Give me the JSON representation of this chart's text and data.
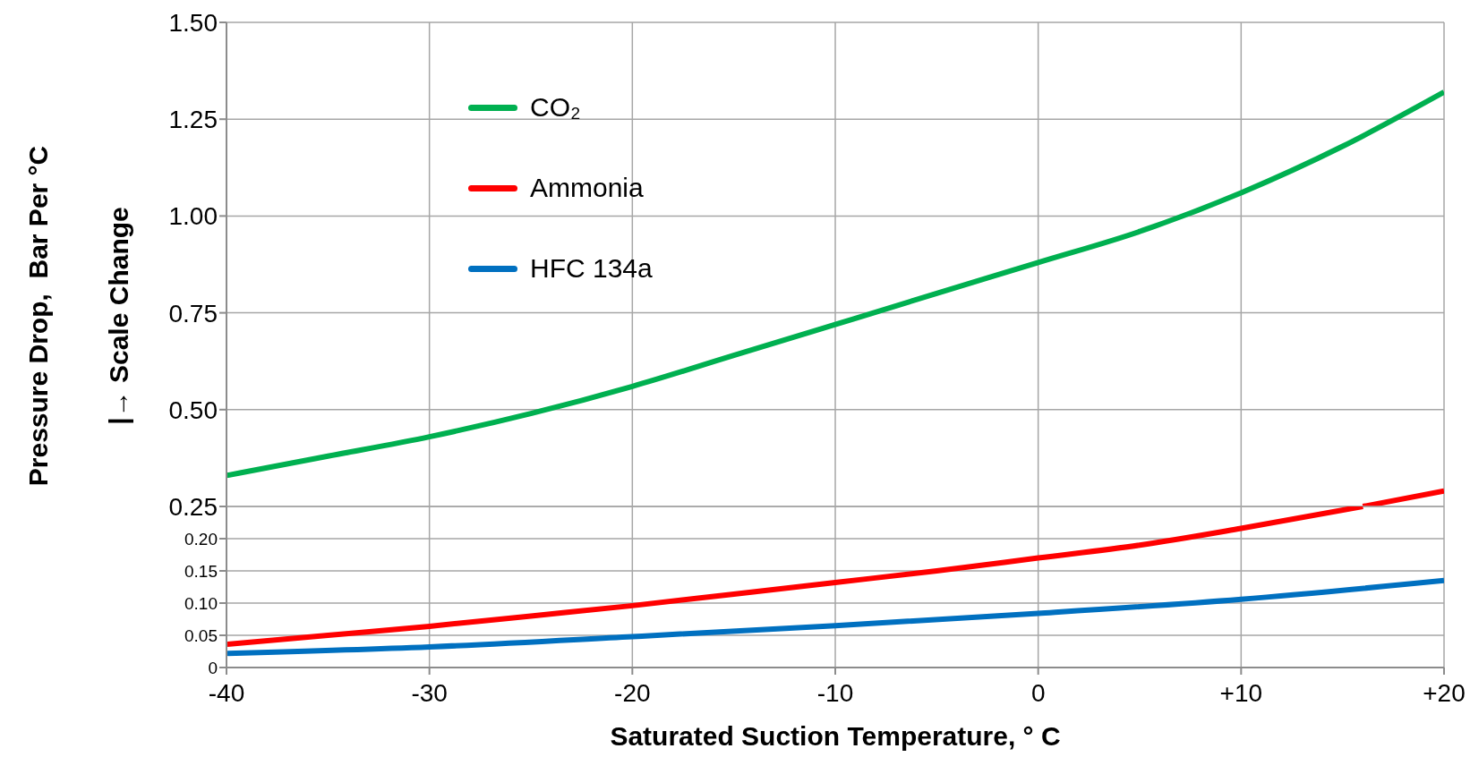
{
  "chart_data": [
    {
      "type": "line",
      "ylabel": "Pressure Drop,  Bar Per °C\n|→ Scale Change",
      "ylim": [
        0.25,
        1.5
      ],
      "yticks": [
        0.25,
        {
          "value": 0.5,
          "label": "0.50"
        },
        0.75,
        {
          "value": 1,
          "label": "1.00"
        },
        1.25,
        {
          "value": 1.5,
          "label": "1.50"
        }
      ],
      "xlim": [
        -40,
        20
      ],
      "xticks": [
        {
          "value": -40,
          "label": null
        },
        {
          "value": -30,
          "label": null
        },
        {
          "value": -20,
          "label": null
        },
        {
          "value": -10,
          "label": null
        },
        {
          "value": 0,
          "label": null
        },
        {
          "value": 10,
          "label": null
        },
        {
          "value": 20,
          "label": null
        }
      ],
      "tick_labels": "y",
      "grid": true,
      "legend": "top left",
      "line_style": "solid",
      "marker": "none",
      "series": [
        {
          "name": "CO₂",
          "color": "#00b050",
          "x": [
            -40,
            -35,
            -30,
            -25,
            -20,
            -15,
            -10,
            -5,
            0,
            5,
            10,
            15,
            20
          ],
          "values": [
            0.33,
            0.38,
            0.43,
            0.49,
            0.56,
            0.64,
            0.72,
            0.8,
            0.88,
            0.96,
            1.06,
            1.18,
            1.32
          ]
        },
        {
          "name": "Ammonia",
          "color": "#ff0000",
          "x": [
            16,
            20
          ],
          "values": [
            0.25,
            0.29
          ]
        }
      ]
    },
    {
      "type": "line",
      "xlabel": "Saturated Suction Temperature, ° C",
      "ylim": [
        0,
        0.25
      ],
      "yticks": [
        0,
        0.05,
        {
          "value": 0.1,
          "label": "0.10"
        },
        0.15,
        {
          "value": 0.2,
          "label": "0.20"
        }
      ],
      "xlim": [
        -40,
        20
      ],
      "xticks": [
        -40,
        -30,
        -20,
        -10,
        0,
        {
          "value": 10,
          "label": "+10"
        },
        {
          "value": 20,
          "label": "+20"
        }
      ],
      "grid": true,
      "legend": "top left",
      "line_style": "solid",
      "marker": "none",
      "series": [
        {
          "color": "#ff0000",
          "x": [
            -40,
            -35,
            -30,
            -25,
            -20,
            -15,
            -10,
            -5,
            0,
            5,
            10,
            16
          ],
          "values": [
            0.036,
            0.05,
            0.064,
            0.08,
            0.096,
            0.114,
            0.132,
            0.15,
            0.17,
            0.19,
            0.216,
            0.25
          ]
        },
        {
          "name": "HFC 134a",
          "color": "#0070c0",
          "x": [
            -40,
            -30,
            -20,
            -10,
            0,
            10,
            20
          ],
          "values": [
            0.022,
            0.032,
            0.048,
            0.065,
            0.084,
            0.106,
            0.135
          ]
        }
      ]
    }
  ]
}
